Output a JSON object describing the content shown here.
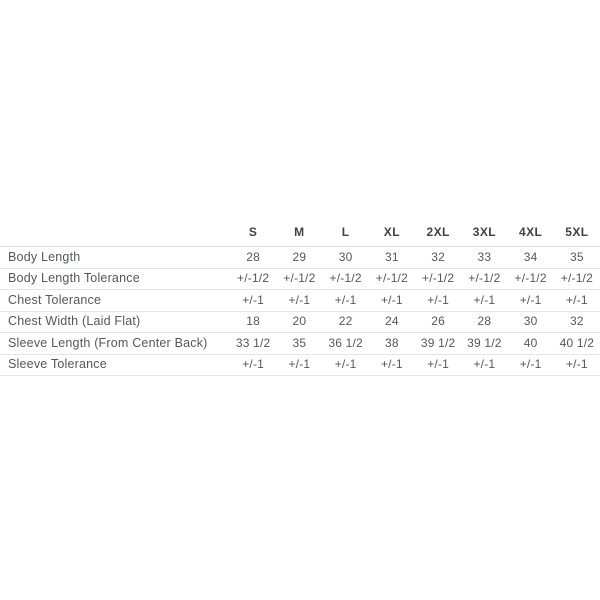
{
  "chart_data": {
    "type": "table",
    "columns": [
      "S",
      "M",
      "L",
      "XL",
      "2XL",
      "3XL",
      "4XL",
      "5XL"
    ],
    "rows": [
      {
        "label": "Body Length",
        "values": [
          "28",
          "29",
          "30",
          "31",
          "32",
          "33",
          "34",
          "35"
        ]
      },
      {
        "label": "Body Length Tolerance",
        "values": [
          "+/-1/2",
          "+/-1/2",
          "+/-1/2",
          "+/-1/2",
          "+/-1/2",
          "+/-1/2",
          "+/-1/2",
          "+/-1/2"
        ]
      },
      {
        "label": "Chest Tolerance",
        "values": [
          "+/-1",
          "+/-1",
          "+/-1",
          "+/-1",
          "+/-1",
          "+/-1",
          "+/-1",
          "+/-1"
        ]
      },
      {
        "label": "Chest Width (Laid Flat)",
        "values": [
          "18",
          "20",
          "22",
          "24",
          "26",
          "28",
          "30",
          "32"
        ]
      },
      {
        "label": "Sleeve Length (From Center Back)",
        "values": [
          "33 1/2",
          "35",
          "36 1/2",
          "38",
          "39 1/2",
          "39 1/2",
          "40",
          "40 1/2"
        ]
      },
      {
        "label": "Sleeve Tolerance",
        "values": [
          "+/-1",
          "+/-1",
          "+/-1",
          "+/-1",
          "+/-1",
          "+/-1",
          "+/-1",
          "+/-1"
        ]
      }
    ],
    "title": "",
    "legend": false,
    "grid": "horizontal-row-separators"
  },
  "colors": {
    "background": "#ffffff",
    "header_text": "#3f4145",
    "body_text": "#55575b",
    "header_border": "#d9dbdd",
    "row_border": "#e4e5e7"
  }
}
